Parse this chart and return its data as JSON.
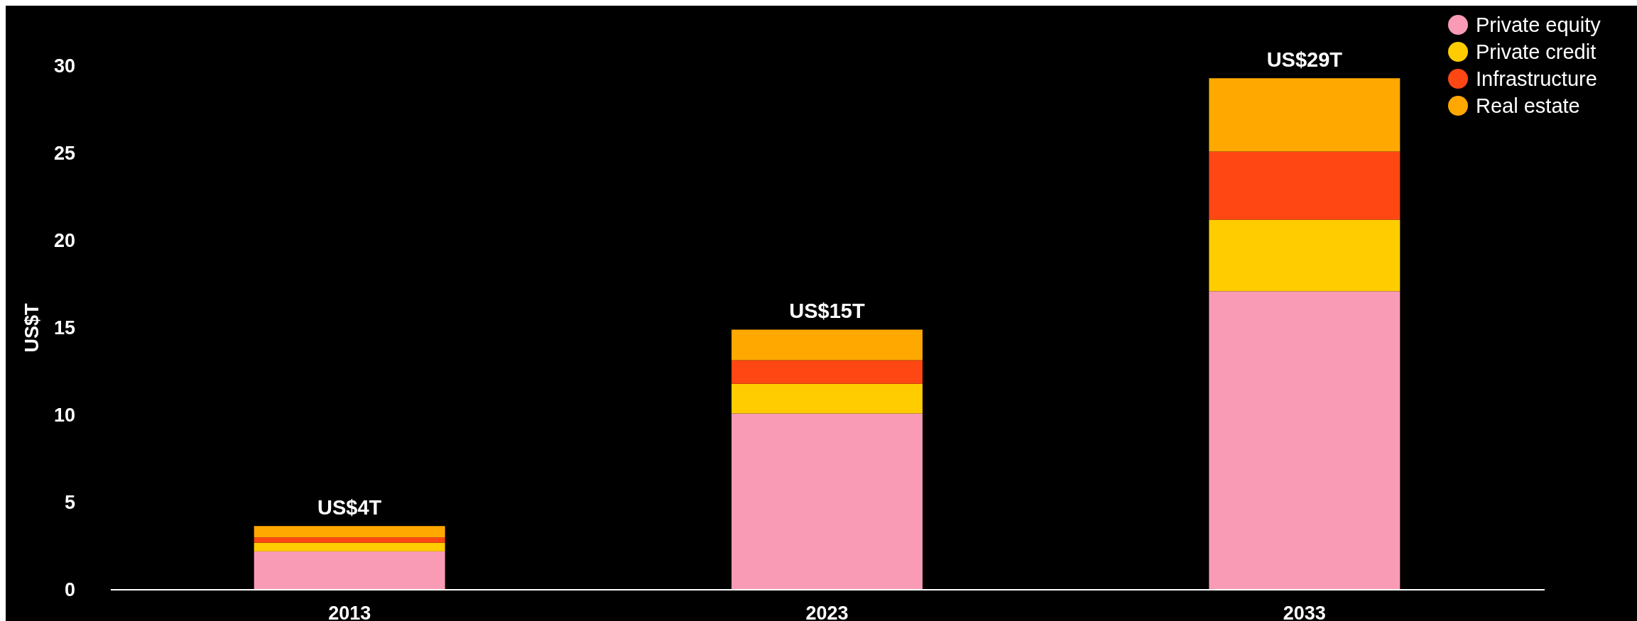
{
  "chart_data": {
    "type": "bar",
    "stacked": true,
    "ylabel": "US$T",
    "categories": [
      "2013",
      "2023",
      "2033"
    ],
    "series": [
      {
        "name": "Private equity",
        "color": "#f99bb5",
        "values": [
          2.2,
          10.1,
          17.1
        ]
      },
      {
        "name": "Private credit",
        "color": "#ffcc00",
        "values": [
          0.5,
          1.7,
          4.1
        ]
      },
      {
        "name": "Infrastructure",
        "color": "#ff4713",
        "values": [
          0.3,
          1.35,
          3.9
        ]
      },
      {
        "name": "Real estate",
        "color": "#ffa800",
        "values": [
          0.65,
          1.75,
          4.2
        ]
      }
    ],
    "totals": [
      "US$4T",
      "US$15T",
      "US$29T"
    ],
    "ylim": [
      0,
      30
    ],
    "yticks": [
      0,
      5,
      10,
      15,
      20,
      25,
      30
    ],
    "legend": "top right",
    "grid": false
  }
}
